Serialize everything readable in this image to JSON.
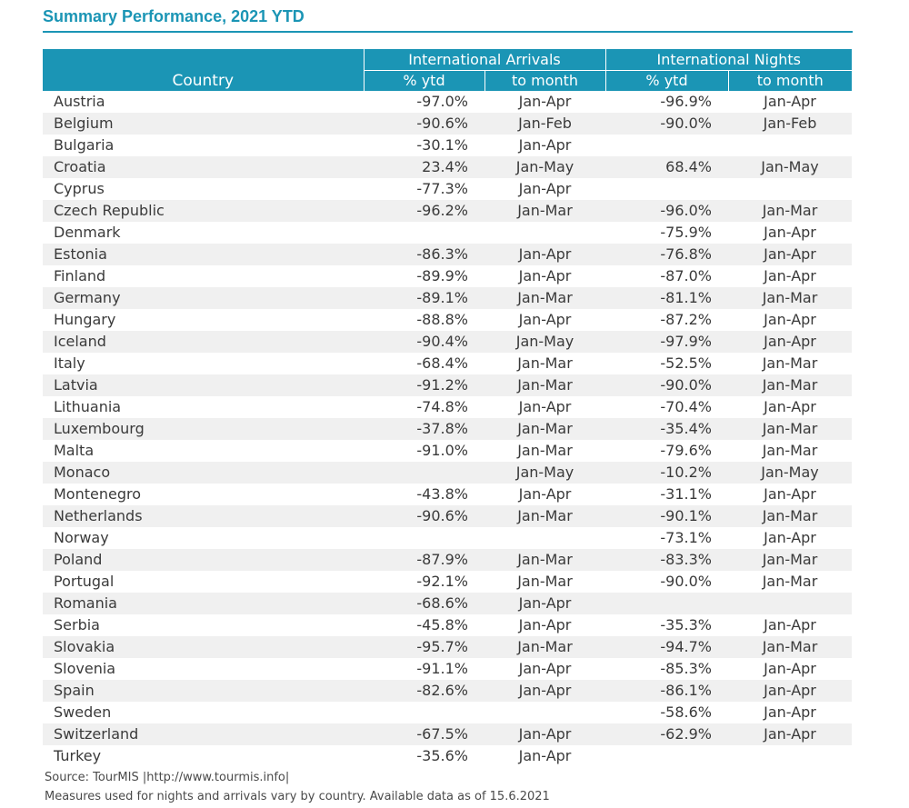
{
  "title": "Summary Performance, 2021 YTD",
  "header": {
    "country": "Country",
    "arrivals_group": "International Arrivals",
    "nights_group": "International Nights",
    "pct_ytd": "% ytd",
    "to_month": "to month"
  },
  "rows": [
    {
      "country": "Austria",
      "arr_pct": "-97.0%",
      "arr_month": "Jan-Apr",
      "ngt_pct": "-96.9%",
      "ngt_month": "Jan-Apr"
    },
    {
      "country": "Belgium",
      "arr_pct": "-90.6%",
      "arr_month": "Jan-Feb",
      "ngt_pct": "-90.0%",
      "ngt_month": "Jan-Feb"
    },
    {
      "country": "Bulgaria",
      "arr_pct": "-30.1%",
      "arr_month": "Jan-Apr",
      "ngt_pct": "",
      "ngt_month": ""
    },
    {
      "country": "Croatia",
      "arr_pct": "23.4%",
      "arr_month": "Jan-May",
      "ngt_pct": "68.4%",
      "ngt_month": "Jan-May"
    },
    {
      "country": "Cyprus",
      "arr_pct": "-77.3%",
      "arr_month": "Jan-Apr",
      "ngt_pct": "",
      "ngt_month": ""
    },
    {
      "country": "Czech Republic",
      "arr_pct": "-96.2%",
      "arr_month": "Jan-Mar",
      "ngt_pct": "-96.0%",
      "ngt_month": "Jan-Mar"
    },
    {
      "country": "Denmark",
      "arr_pct": "",
      "arr_month": "",
      "ngt_pct": "-75.9%",
      "ngt_month": "Jan-Apr"
    },
    {
      "country": "Estonia",
      "arr_pct": "-86.3%",
      "arr_month": "Jan-Apr",
      "ngt_pct": "-76.8%",
      "ngt_month": "Jan-Apr"
    },
    {
      "country": "Finland",
      "arr_pct": "-89.9%",
      "arr_month": "Jan-Apr",
      "ngt_pct": "-87.0%",
      "ngt_month": "Jan-Apr"
    },
    {
      "country": "Germany",
      "arr_pct": "-89.1%",
      "arr_month": "Jan-Mar",
      "ngt_pct": "-81.1%",
      "ngt_month": "Jan-Mar"
    },
    {
      "country": "Hungary",
      "arr_pct": "-88.8%",
      "arr_month": "Jan-Apr",
      "ngt_pct": "-87.2%",
      "ngt_month": "Jan-Apr"
    },
    {
      "country": "Iceland",
      "arr_pct": "-90.4%",
      "arr_month": "Jan-May",
      "ngt_pct": "-97.9%",
      "ngt_month": "Jan-Apr"
    },
    {
      "country": "Italy",
      "arr_pct": "-68.4%",
      "arr_month": "Jan-Mar",
      "ngt_pct": "-52.5%",
      "ngt_month": "Jan-Mar"
    },
    {
      "country": "Latvia",
      "arr_pct": "-91.2%",
      "arr_month": "Jan-Mar",
      "ngt_pct": "-90.0%",
      "ngt_month": "Jan-Mar"
    },
    {
      "country": "Lithuania",
      "arr_pct": "-74.8%",
      "arr_month": "Jan-Apr",
      "ngt_pct": "-70.4%",
      "ngt_month": "Jan-Apr"
    },
    {
      "country": "Luxembourg",
      "arr_pct": "-37.8%",
      "arr_month": "Jan-Mar",
      "ngt_pct": "-35.4%",
      "ngt_month": "Jan-Mar"
    },
    {
      "country": "Malta",
      "arr_pct": "-91.0%",
      "arr_month": "Jan-Mar",
      "ngt_pct": "-79.6%",
      "ngt_month": "Jan-Mar"
    },
    {
      "country": "Monaco",
      "arr_pct": "",
      "arr_month": "Jan-May",
      "ngt_pct": "-10.2%",
      "ngt_month": "Jan-May"
    },
    {
      "country": "Montenegro",
      "arr_pct": "-43.8%",
      "arr_month": "Jan-Apr",
      "ngt_pct": "-31.1%",
      "ngt_month": "Jan-Apr"
    },
    {
      "country": "Netherlands",
      "arr_pct": "-90.6%",
      "arr_month": "Jan-Mar",
      "ngt_pct": "-90.1%",
      "ngt_month": "Jan-Mar"
    },
    {
      "country": "Norway",
      "arr_pct": "",
      "arr_month": "",
      "ngt_pct": "-73.1%",
      "ngt_month": "Jan-Apr"
    },
    {
      "country": "Poland",
      "arr_pct": "-87.9%",
      "arr_month": "Jan-Mar",
      "ngt_pct": "-83.3%",
      "ngt_month": "Jan-Mar"
    },
    {
      "country": "Portugal",
      "arr_pct": "-92.1%",
      "arr_month": "Jan-Mar",
      "ngt_pct": "-90.0%",
      "ngt_month": "Jan-Mar"
    },
    {
      "country": "Romania",
      "arr_pct": "-68.6%",
      "arr_month": "Jan-Apr",
      "ngt_pct": "",
      "ngt_month": ""
    },
    {
      "country": "Serbia",
      "arr_pct": "-45.8%",
      "arr_month": "Jan-Apr",
      "ngt_pct": "-35.3%",
      "ngt_month": "Jan-Apr"
    },
    {
      "country": "Slovakia",
      "arr_pct": "-95.7%",
      "arr_month": "Jan-Mar",
      "ngt_pct": "-94.7%",
      "ngt_month": "Jan-Mar"
    },
    {
      "country": "Slovenia",
      "arr_pct": "-91.1%",
      "arr_month": "Jan-Apr",
      "ngt_pct": "-85.3%",
      "ngt_month": "Jan-Apr"
    },
    {
      "country": "Spain",
      "arr_pct": "-82.6%",
      "arr_month": "Jan-Apr",
      "ngt_pct": "-86.1%",
      "ngt_month": "Jan-Apr"
    },
    {
      "country": "Sweden",
      "arr_pct": "",
      "arr_month": "",
      "ngt_pct": "-58.6%",
      "ngt_month": "Jan-Apr"
    },
    {
      "country": "Switzerland",
      "arr_pct": "-67.5%",
      "arr_month": "Jan-Apr",
      "ngt_pct": "-62.9%",
      "ngt_month": "Jan-Apr"
    },
    {
      "country": "Turkey",
      "arr_pct": "-35.6%",
      "arr_month": "Jan-Apr",
      "ngt_pct": "",
      "ngt_month": ""
    }
  ],
  "footer": {
    "source": "Source: TourMIS |http://www.tourmis.info|",
    "measures": "Measures used for nights and arrivals vary by country. Available data as of 15.6.2021"
  },
  "colors": {
    "accent": "#1b95b5",
    "stripe": "#f0f0f0",
    "header_text": "#ffffff"
  }
}
